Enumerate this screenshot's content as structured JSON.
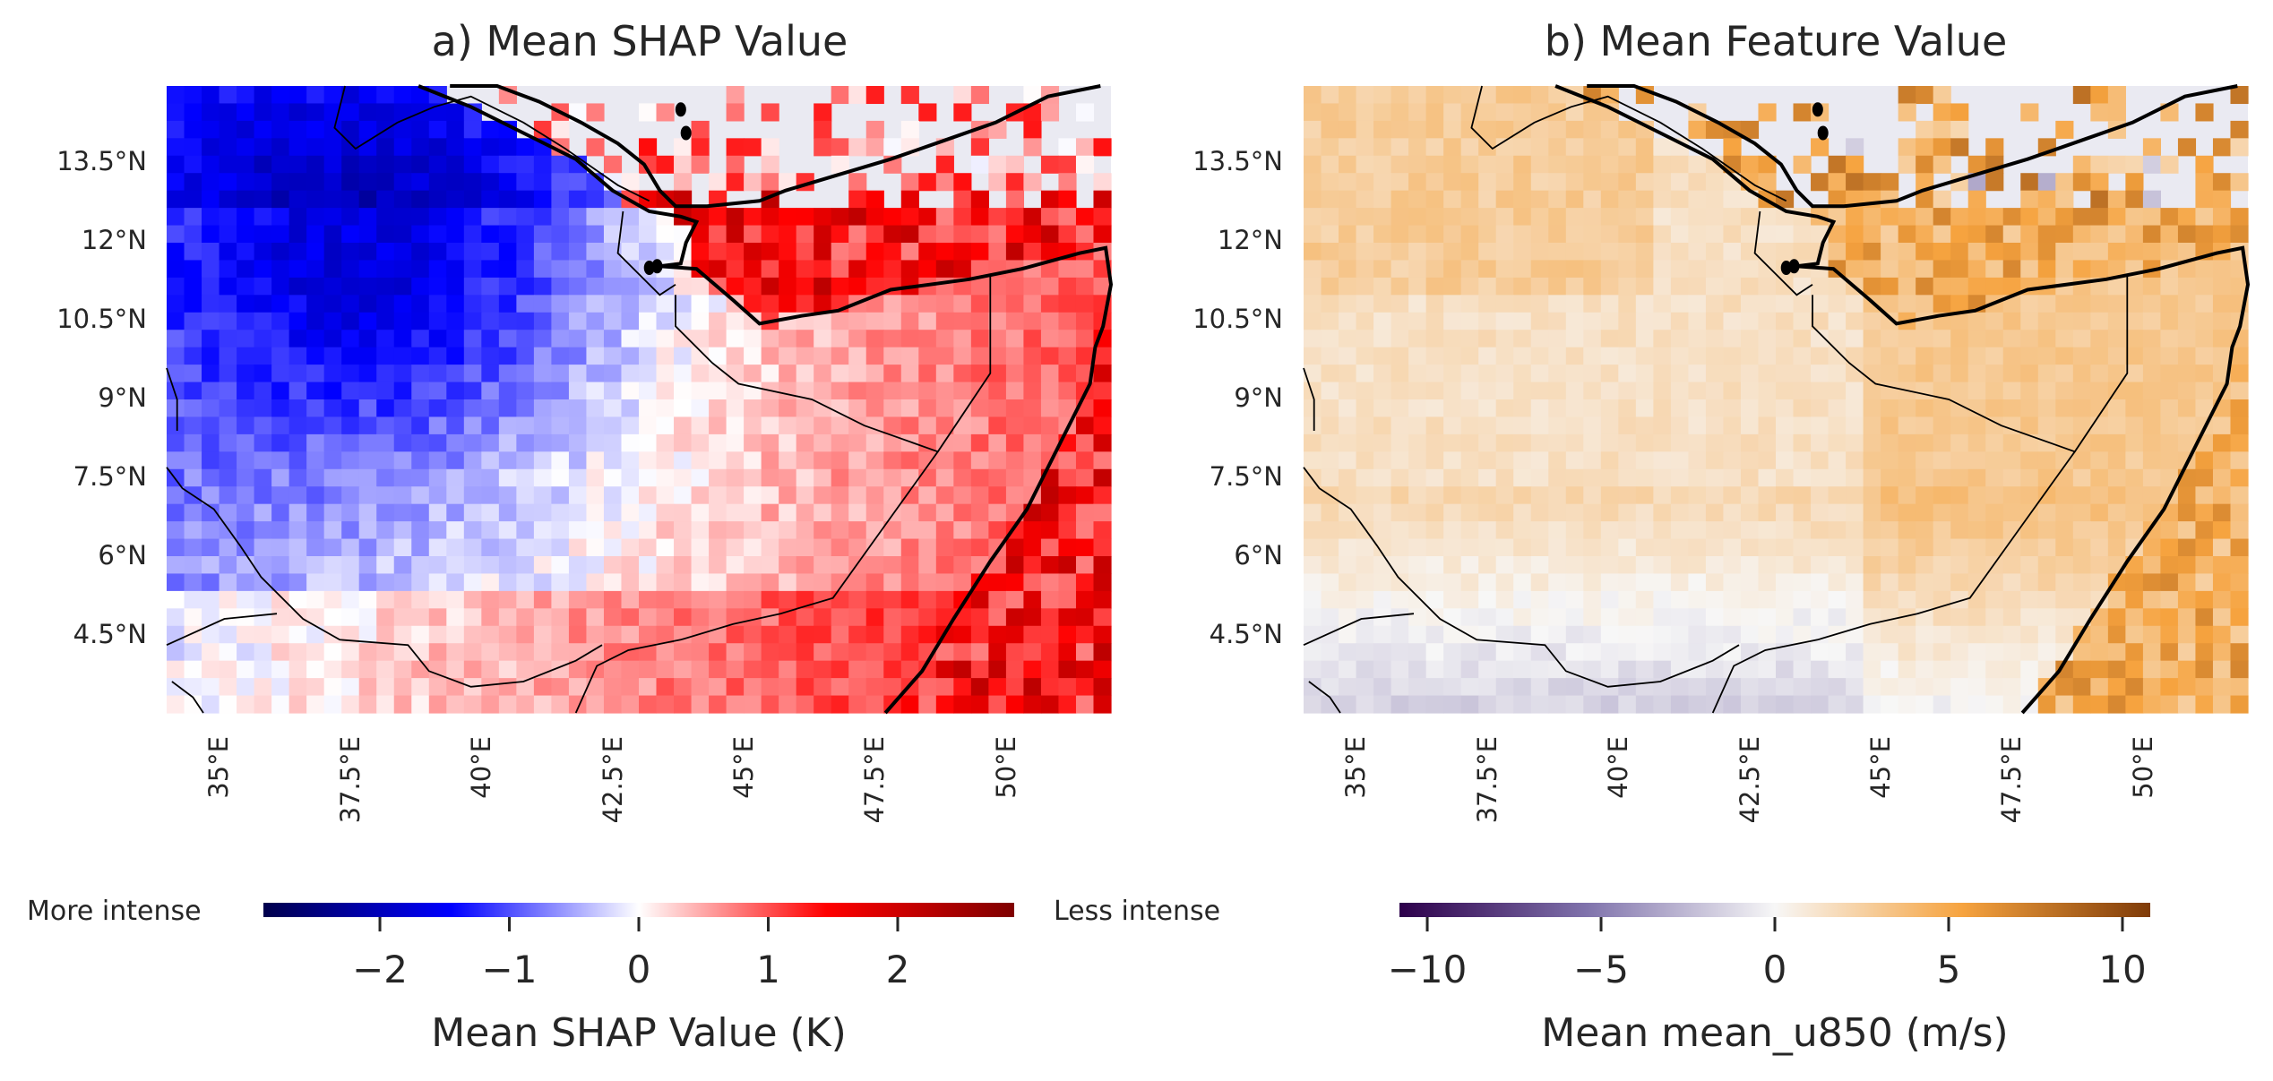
{
  "panels": [
    {
      "id": "a",
      "title": "a) Mean SHAP Value",
      "lat_ticks": [
        "13.5°N",
        "12°N",
        "10.5°N",
        "9°N",
        "7.5°N",
        "6°N",
        "4.5°N"
      ],
      "lon_ticks": [
        "35°E",
        "37.5°E",
        "40°E",
        "42.5°E",
        "45°E",
        "47.5°E",
        "50°E"
      ],
      "colorbar": {
        "cmap": "seismic",
        "colors": [
          "#00004c",
          "#0000ff",
          "#ffffff",
          "#ff0000",
          "#7f0000"
        ],
        "ticks": [
          "−2",
          "−1",
          "0",
          "1",
          "2"
        ],
        "range": [
          -2.9,
          2.9
        ],
        "tick_values": [
          -2,
          -1,
          0,
          1,
          2
        ],
        "label": "Mean SHAP Value (K)",
        "left_note": "More intense",
        "right_note": "Less intense"
      }
    },
    {
      "id": "b",
      "title": "b) Mean Feature Value",
      "lat_ticks": [
        "13.5°N",
        "12°N",
        "10.5°N",
        "9°N",
        "7.5°N",
        "6°N",
        "4.5°N"
      ],
      "lon_ticks": [
        "35°E",
        "37.5°E",
        "40°E",
        "42.5°E",
        "45°E",
        "47.5°E",
        "50°E"
      ],
      "colorbar": {
        "cmap": "PuOr_r",
        "colors": [
          "#2d004b",
          "#8073ac",
          "#f7f7f7",
          "#f6a33f",
          "#7f3b08"
        ],
        "ticks": [
          "−10",
          "−5",
          "0",
          "5",
          "10"
        ],
        "range": [
          -10.8,
          10.8
        ],
        "tick_values": [
          -10,
          -5,
          0,
          5,
          10
        ],
        "label": "Mean mean_u850 (m/s)"
      }
    }
  ],
  "map": {
    "lon_range": [
      33.2,
      51.2
    ],
    "lat_range": [
      3.0,
      15.0
    ],
    "missing_color": "#eaeaf2",
    "coast_color": "#000000"
  }
}
